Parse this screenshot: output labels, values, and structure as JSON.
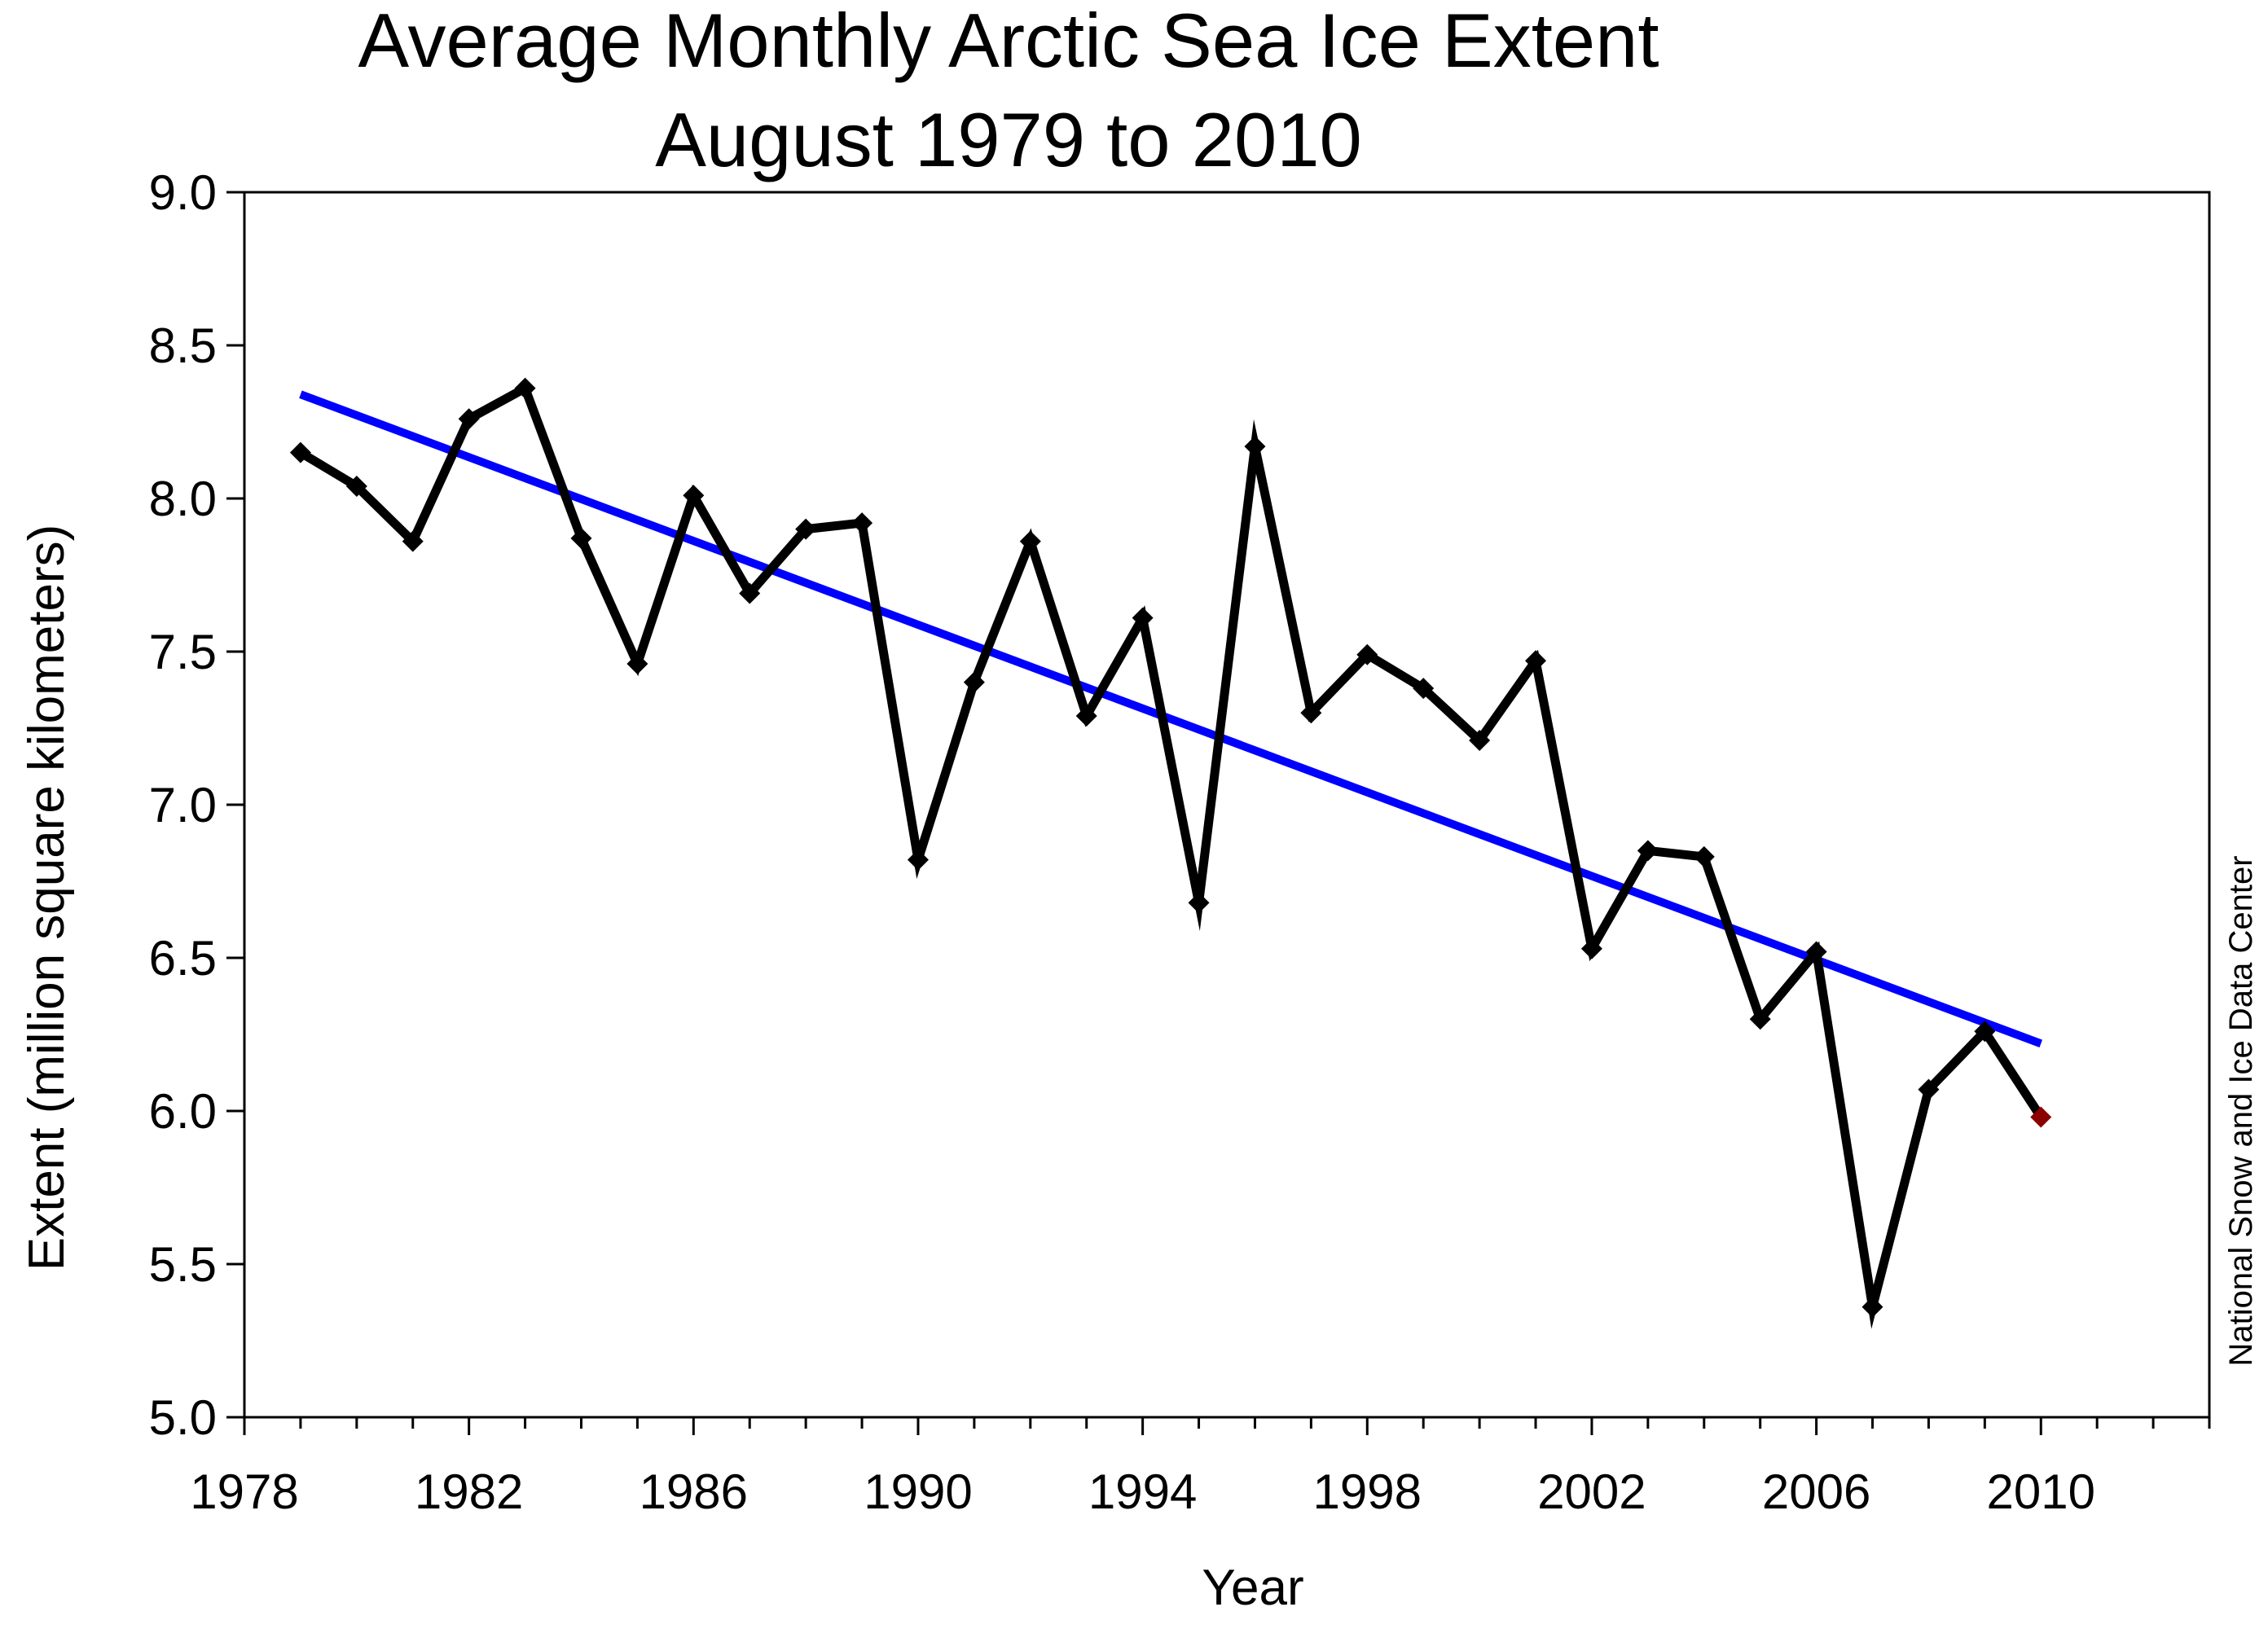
{
  "chart_data": {
    "type": "line",
    "title": "Average Monthly Arctic Sea Ice Extent",
    "subtitle": "August 1979 to 2010",
    "xlabel": "Year",
    "ylabel": "Extent (million square kilometers)",
    "credit": "National Snow and Ice Data Center",
    "xlim": [
      1978,
      2013
    ],
    "ylim": [
      5.0,
      9.0
    ],
    "x_ticks": [
      1978,
      1982,
      1986,
      1990,
      1994,
      1998,
      2002,
      2006,
      2010
    ],
    "x_tick_labels": [
      "1978",
      "1982",
      "1986",
      "1990",
      "1994",
      "1998",
      "2002",
      "2006",
      "2010"
    ],
    "y_ticks": [
      5.0,
      5.5,
      6.0,
      6.5,
      7.0,
      7.5,
      8.0,
      8.5,
      9.0
    ],
    "y_tick_labels": [
      "5.0",
      "5.5",
      "6.0",
      "6.5",
      "7.0",
      "7.5",
      "8.0",
      "8.5",
      "9.0"
    ],
    "grid": false,
    "legend": "none",
    "series": [
      {
        "x": [
          1979,
          1980,
          1981,
          1982,
          1983,
          1984,
          1985,
          1986,
          1987,
          1988,
          1989,
          1990,
          1991,
          1992,
          1993,
          1994,
          1995,
          1996,
          1997,
          1998,
          1999,
          2000,
          2001,
          2002,
          2003,
          2004,
          2005,
          2006,
          2007,
          2008,
          2009,
          2010
        ],
        "values": [
          8.15,
          8.04,
          7.86,
          8.26,
          8.36,
          7.87,
          7.46,
          8.01,
          7.69,
          7.9,
          7.92,
          6.82,
          7.4,
          7.86,
          7.29,
          7.61,
          6.68,
          8.17,
          7.3,
          7.49,
          7.38,
          7.21,
          7.47,
          6.53,
          6.85,
          6.83,
          6.3,
          6.52,
          5.36,
          6.07,
          6.26,
          5.98
        ],
        "color": "#000000",
        "marker": "diamond",
        "highlight_last_color": "#8b0000"
      },
      {
        "kind": "trend",
        "x": [
          1979,
          2010
        ],
        "values": [
          8.34,
          6.22
        ],
        "color": "#0000ff"
      }
    ]
  }
}
